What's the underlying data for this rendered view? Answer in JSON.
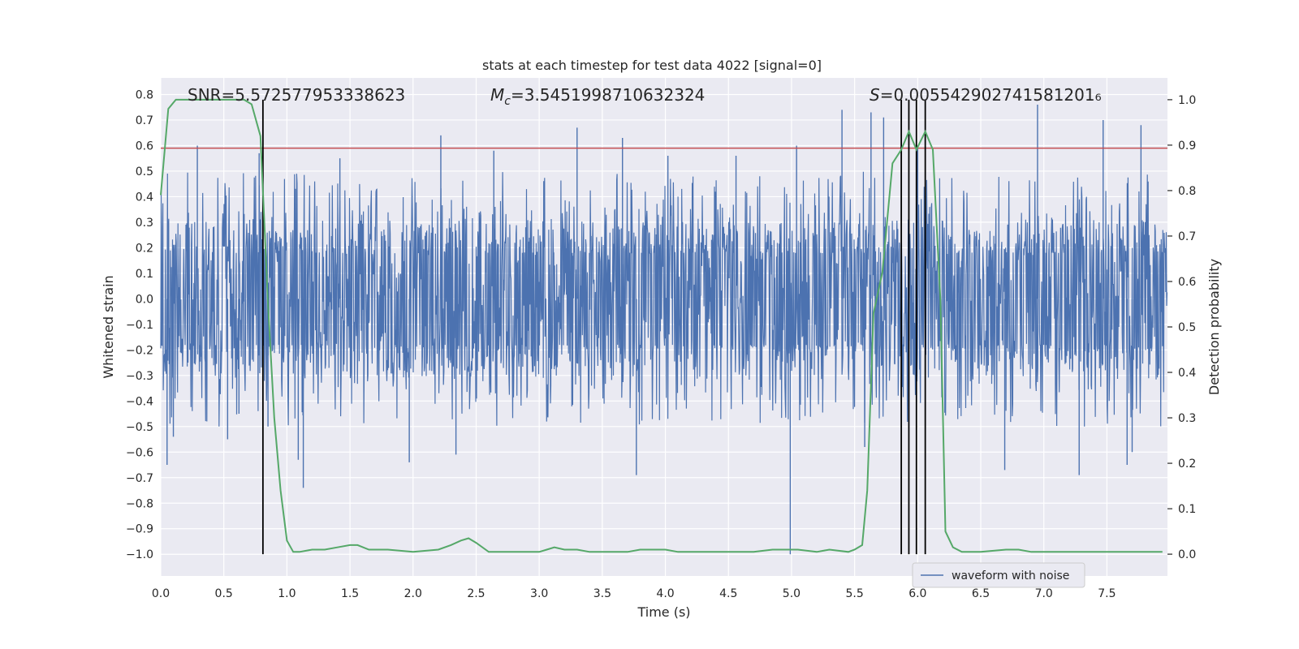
{
  "chart_data": {
    "type": "line",
    "title": "stats at each timestep for test data 4022 [signal=0]",
    "xlabel": "Time (s)",
    "ylabel": "Whitened strain",
    "y2label": "Detection probability",
    "xlim": [
      0.0,
      7.98
    ],
    "ylim": [
      -1.085,
      0.865
    ],
    "y2lim": [
      -0.048,
      1.048
    ],
    "x_ticks": [
      0.0,
      0.5,
      1.0,
      1.5,
      2.0,
      2.5,
      3.0,
      3.5,
      4.0,
      4.5,
      5.0,
      5.5,
      6.0,
      6.5,
      7.0,
      7.5
    ],
    "x_tick_labels": [
      "0.0",
      "0.5",
      "1.0",
      "1.5",
      "2.0",
      "2.5",
      "3.0",
      "3.5",
      "4.0",
      "4.5",
      "5.0",
      "5.5",
      "6.0",
      "6.5",
      "7.0",
      "7.5"
    ],
    "y_ticks": [
      0.8,
      0.7,
      0.6,
      0.5,
      0.4,
      0.3,
      0.2,
      0.1,
      0.0,
      -0.1,
      -0.2,
      -0.3,
      -0.4,
      -0.5,
      -0.6,
      -0.7,
      -0.8,
      -0.9,
      -1.0
    ],
    "y_tick_labels": [
      "0.8",
      "0.7",
      "0.6",
      "0.5",
      "0.4",
      "0.3",
      "0.2",
      "0.1",
      "0.0",
      "−0.1",
      "−0.2",
      "−0.3",
      "−0.4",
      "−0.5",
      "−0.6",
      "−0.7",
      "−0.8",
      "−0.9",
      "−1.0"
    ],
    "y2_ticks": [
      1.0,
      0.9,
      0.8,
      0.7,
      0.6,
      0.5,
      0.4,
      0.3,
      0.2,
      0.1,
      0.0
    ],
    "y2_tick_labels": [
      "1.0",
      "0.9",
      "0.8",
      "0.7",
      "0.6",
      "0.5",
      "0.4",
      "0.3",
      "0.2",
      "0.1",
      "0.0"
    ],
    "annotations": {
      "snr": "SNR=5.572577953338623",
      "mc_symbol": "M",
      "mc_subscript": "c",
      "mc_value": "=3.5451998710632324",
      "s_symbol": "S",
      "s_value": "=0.005542902741581201₆"
    },
    "threshold_line": {
      "value": 0.59,
      "color": "#c44e52"
    },
    "vertical_markers": [
      0.81,
      5.87,
      5.93,
      5.99,
      6.06
    ],
    "waveform": {
      "name": "waveform with noise",
      "color": "#4c72b0",
      "typical_range": [
        -0.3,
        0.3
      ],
      "spikes": [
        {
          "t": 0.05,
          "v": -0.65
        },
        {
          "t": 0.1,
          "v": -0.54
        },
        {
          "t": 0.29,
          "v": 0.6
        },
        {
          "t": 0.53,
          "v": -0.55
        },
        {
          "t": 0.78,
          "v": 0.57
        },
        {
          "t": 0.85,
          "v": -0.5
        },
        {
          "t": 1.13,
          "v": -0.74
        },
        {
          "t": 1.09,
          "v": -0.63
        },
        {
          "t": 1.42,
          "v": 0.55
        },
        {
          "t": 1.97,
          "v": -0.64
        },
        {
          "t": 2.22,
          "v": 0.64
        },
        {
          "t": 2.34,
          "v": -0.61
        },
        {
          "t": 2.64,
          "v": 0.58
        },
        {
          "t": 3.3,
          "v": 0.67
        },
        {
          "t": 3.77,
          "v": -0.69
        },
        {
          "t": 4.02,
          "v": 0.56
        },
        {
          "t": 4.56,
          "v": 0.56
        },
        {
          "t": 4.99,
          "v": -1.0
        },
        {
          "t": 5.04,
          "v": 0.6
        },
        {
          "t": 5.4,
          "v": 0.74
        },
        {
          "t": 5.58,
          "v": -0.58
        },
        {
          "t": 5.63,
          "v": 0.73
        },
        {
          "t": 5.73,
          "v": 0.71
        },
        {
          "t": 6.0,
          "v": 0.6
        },
        {
          "t": 6.69,
          "v": -0.67
        },
        {
          "t": 6.95,
          "v": 0.76
        },
        {
          "t": 7.28,
          "v": -0.69
        },
        {
          "t": 7.47,
          "v": 0.7
        },
        {
          "t": 7.66,
          "v": -0.65
        },
        {
          "t": 7.77,
          "v": 0.68
        },
        {
          "t": 7.7,
          "v": -0.6
        },
        {
          "t": 3.66,
          "v": 0.63
        },
        {
          "t": 0.62,
          "v": -0.45
        }
      ]
    },
    "detection_probability": {
      "name": "detection probability",
      "color": "#55a868",
      "t": [
        0.0,
        0.06,
        0.12,
        0.2,
        0.3,
        0.4,
        0.5,
        0.6,
        0.66,
        0.72,
        0.79,
        0.85,
        0.9,
        0.95,
        1.0,
        1.05,
        1.1,
        1.2,
        1.3,
        1.4,
        1.5,
        1.56,
        1.65,
        1.8,
        2.0,
        2.2,
        2.3,
        2.38,
        2.44,
        2.5,
        2.6,
        2.8,
        3.0,
        3.06,
        3.12,
        3.2,
        3.3,
        3.4,
        3.5,
        3.7,
        3.8,
        3.9,
        4.0,
        4.1,
        4.3,
        4.5,
        4.7,
        4.85,
        4.95,
        5.05,
        5.2,
        5.3,
        5.45,
        5.5,
        5.56,
        5.6,
        5.65,
        5.72,
        5.8,
        5.87,
        5.93,
        5.99,
        6.06,
        6.12,
        6.18,
        6.22,
        6.28,
        6.35,
        6.5,
        6.7,
        6.8,
        6.9,
        7.0,
        7.2,
        7.4,
        7.6,
        7.8,
        7.94
      ],
      "values": [
        0.79,
        0.98,
        1.0,
        1.0,
        1.0,
        1.0,
        1.0,
        1.0,
        1.0,
        0.99,
        0.92,
        0.55,
        0.3,
        0.14,
        0.03,
        0.005,
        0.005,
        0.01,
        0.01,
        0.015,
        0.02,
        0.02,
        0.01,
        0.01,
        0.005,
        0.01,
        0.02,
        0.03,
        0.035,
        0.025,
        0.005,
        0.005,
        0.005,
        0.01,
        0.015,
        0.01,
        0.01,
        0.005,
        0.005,
        0.005,
        0.01,
        0.01,
        0.01,
        0.005,
        0.005,
        0.005,
        0.005,
        0.01,
        0.01,
        0.01,
        0.005,
        0.01,
        0.005,
        0.01,
        0.02,
        0.14,
        0.53,
        0.62,
        0.86,
        0.89,
        0.93,
        0.89,
        0.93,
        0.89,
        0.56,
        0.05,
        0.015,
        0.005,
        0.005,
        0.01,
        0.01,
        0.005,
        0.005,
        0.005,
        0.005,
        0.005,
        0.005,
        0.005
      ]
    }
  }
}
